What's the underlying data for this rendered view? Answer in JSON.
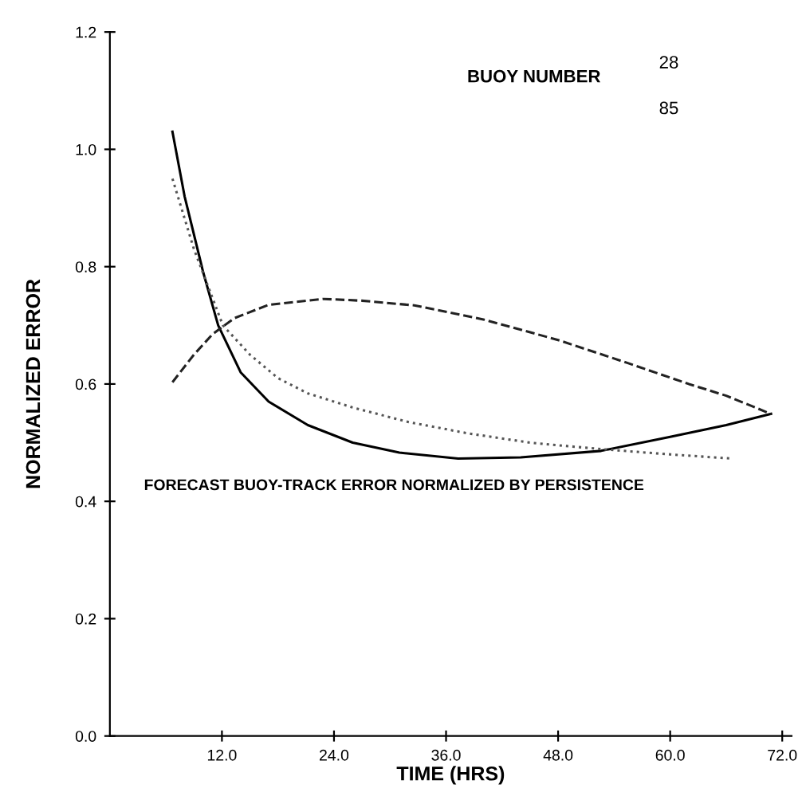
{
  "chart_data": {
    "type": "line",
    "xlabel": "TIME (HRS)",
    "ylabel": "NORMALIZED ERROR",
    "annotations": [
      "BUOY NUMBER",
      "28",
      "85",
      "FORECAST BUOY-TRACK ERROR NORMALIZED BY PERSISTENCE"
    ],
    "series": [
      {
        "color": "#000000",
        "line_style": "solid",
        "x": [
          6.7,
          8,
          10,
          11.6,
          14,
          17,
          21.2,
          26,
          31,
          37.3,
          44,
          52.6,
          60,
          66,
          70.8
        ],
        "values": [
          1.03,
          0.92,
          0.79,
          0.7,
          0.62,
          0.57,
          0.53,
          0.5,
          0.483,
          0.473,
          0.475,
          0.486,
          0.51,
          0.53,
          0.549
        ]
      },
      {
        "color": "#555555",
        "line_style": "dotted",
        "x": [
          6.7,
          9,
          12.1,
          15,
          18,
          21.2,
          26,
          32,
          38.3,
          45,
          52.6,
          60,
          66.5
        ],
        "values": [
          0.95,
          0.83,
          0.7,
          0.65,
          0.61,
          0.584,
          0.56,
          0.535,
          0.516,
          0.5,
          0.489,
          0.48,
          0.473
        ]
      },
      {
        "color": "#222222",
        "line_style": "dashed",
        "x": [
          6.7,
          9,
          11,
          13.3,
          17,
          22.9,
          27,
          32.6,
          40,
          48,
          55.4,
          62,
          66,
          70.8
        ],
        "values": [
          0.603,
          0.65,
          0.685,
          0.712,
          0.735,
          0.745,
          0.742,
          0.734,
          0.71,
          0.675,
          0.636,
          0.6,
          0.58,
          0.549
        ]
      }
    ],
    "xlim": [
      0,
      73
    ],
    "xticks": [
      {
        "value": 12,
        "label": "12.0"
      },
      {
        "value": 24,
        "label": "24.0"
      },
      {
        "value": 36,
        "label": "36.0"
      },
      {
        "value": 48,
        "label": "48.0"
      },
      {
        "value": 60,
        "label": "60.0"
      },
      {
        "value": 72,
        "label": "72.0"
      }
    ],
    "ylim": [
      0,
      1.2
    ],
    "yticks": [
      {
        "value": 0,
        "label": "0.0"
      },
      {
        "value": 0.2,
        "label": "0.2"
      },
      {
        "value": 0.4,
        "label": "0.4"
      },
      {
        "value": 0.6,
        "label": "0.6"
      },
      {
        "value": 0.8,
        "label": "0.8"
      },
      {
        "value": 1.0,
        "label": "1.0"
      },
      {
        "value": 1.2,
        "label": "1.2"
      }
    ],
    "grid": false,
    "legend": false,
    "marker": "none"
  }
}
